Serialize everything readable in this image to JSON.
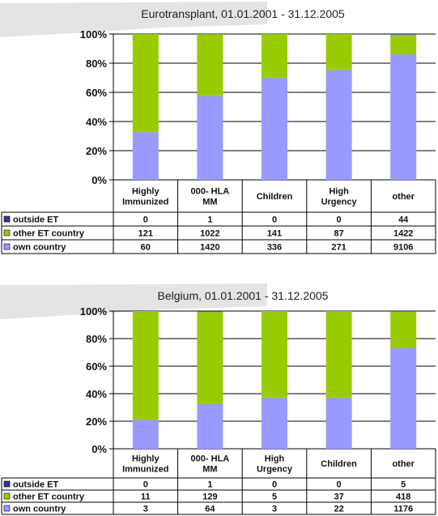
{
  "colors": {
    "outside_et": "#333399",
    "other_et_country": "#99CC00",
    "own_country": "#9999FF",
    "grid": "#000000",
    "title_band": "#e4e4e4"
  },
  "chart_data": [
    {
      "type": "bar",
      "stacked": "percent",
      "title": "Eurotransplant, 01.01.2001 - 31.12.2005",
      "categories": [
        [
          "Highly",
          "Immunized"
        ],
        [
          "000- HLA",
          "MM"
        ],
        [
          "Children"
        ],
        [
          "High",
          "Urgency"
        ],
        [
          "other"
        ]
      ],
      "yticks": [
        "0%",
        "20%",
        "40%",
        "60%",
        "80%",
        "100%"
      ],
      "ylim": [
        0,
        100
      ],
      "grid": true,
      "legend": "data-table",
      "series": [
        {
          "name": "outside ET",
          "values": [
            0,
            1,
            0,
            0,
            44
          ]
        },
        {
          "name": "other ET country",
          "values": [
            121,
            1022,
            141,
            87,
            1422
          ]
        },
        {
          "name": "own country",
          "values": [
            60,
            1420,
            336,
            271,
            9106
          ]
        }
      ]
    },
    {
      "type": "bar",
      "stacked": "percent",
      "title": "Belgium, 01.01.2001 - 31.12.2005",
      "categories": [
        [
          "Highly",
          "Immunized"
        ],
        [
          "000- HLA",
          "MM"
        ],
        [
          "High",
          "Urgency"
        ],
        [
          "Children"
        ],
        [
          "other"
        ]
      ],
      "yticks": [
        "0%",
        "20%",
        "40%",
        "60%",
        "80%",
        "100%"
      ],
      "ylim": [
        0,
        100
      ],
      "grid": true,
      "legend": "data-table",
      "series": [
        {
          "name": "outside ET",
          "values": [
            0,
            1,
            0,
            0,
            5
          ]
        },
        {
          "name": "other ET country",
          "values": [
            11,
            129,
            5,
            37,
            418
          ]
        },
        {
          "name": "own country",
          "values": [
            3,
            64,
            3,
            22,
            1176
          ]
        }
      ]
    }
  ]
}
